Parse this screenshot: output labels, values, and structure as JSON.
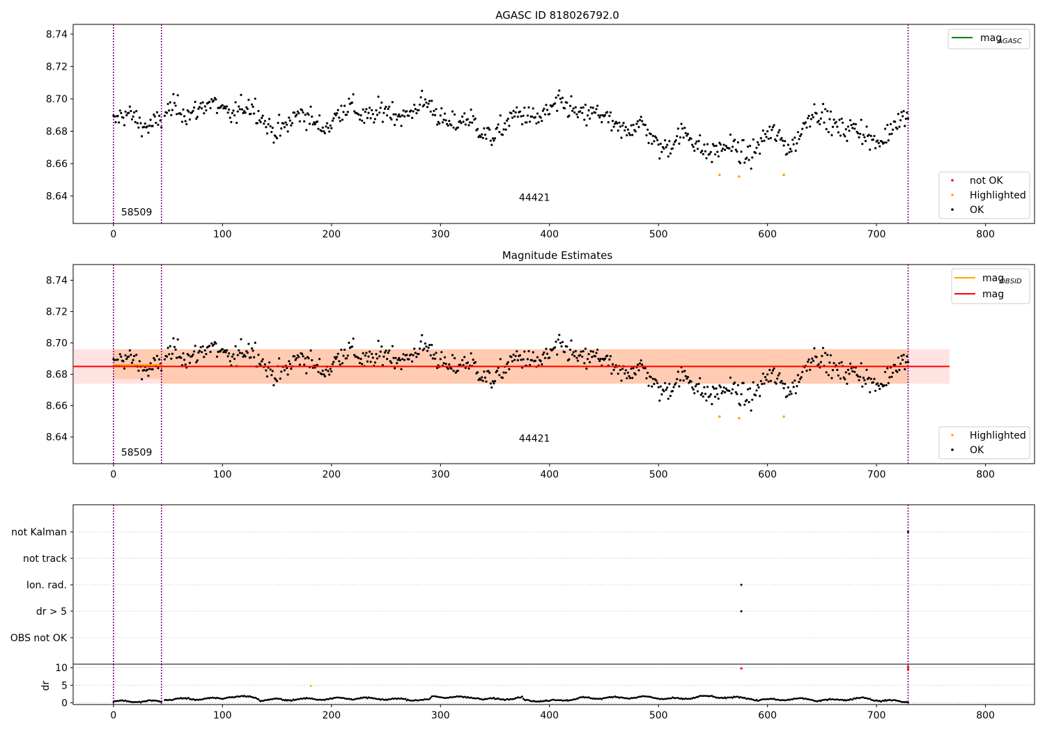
{
  "figure": {
    "colors": {
      "ok": "#000000",
      "highlighted": "#ffa500",
      "not_ok": "#ff0000",
      "obs_line": "#800080",
      "mag_obsid": "#ffa500",
      "mag": "#ff0000",
      "mag_agasc": "#008000",
      "band_mag": "#ff8c8c",
      "band_obsid": "#ffb07a"
    }
  },
  "chart_data": [
    {
      "id": "top",
      "type": "scatter",
      "title": "AGASC ID 818026792.0",
      "xlim": [
        -37,
        845
      ],
      "ylim": [
        8.623,
        8.746
      ],
      "x_ticks": [
        0,
        100,
        200,
        300,
        400,
        500,
        600,
        700,
        800
      ],
      "y_ticks": [
        "8.64",
        "8.66",
        "8.68",
        "8.70",
        "8.72",
        "8.74"
      ],
      "obs_boundaries": [
        0,
        44,
        729
      ],
      "obs_labels": [
        {
          "text": "58509",
          "x": 7,
          "y": 8.628
        },
        {
          "text": "44421",
          "x": 372,
          "y": 8.637
        }
      ],
      "legend_lines": [
        {
          "label": "mag",
          "sub": "AGASC",
          "color": "#008000"
        }
      ],
      "legend_points": [
        {
          "label": "not OK",
          "color": "#ff0000"
        },
        {
          "label": "Highlighted",
          "color": "#ffa500"
        },
        {
          "label": "OK",
          "color": "#000000"
        }
      ],
      "mag_agasc": null,
      "highlighted_points": [
        [
          556,
          8.653
        ],
        [
          574,
          8.652
        ],
        [
          615,
          8.653
        ]
      ],
      "ok_profile": [
        [
          0,
          8.685
        ],
        [
          20,
          8.688
        ],
        [
          44,
          8.685
        ],
        [
          60,
          8.695
        ],
        [
          100,
          8.693
        ],
        [
          120,
          8.695
        ],
        [
          140,
          8.685
        ],
        [
          160,
          8.683
        ],
        [
          180,
          8.69
        ],
        [
          200,
          8.683
        ],
        [
          220,
          8.697
        ],
        [
          240,
          8.688
        ],
        [
          260,
          8.692
        ],
        [
          280,
          8.695
        ],
        [
          300,
          8.69
        ],
        [
          320,
          8.685
        ],
        [
          340,
          8.68
        ],
        [
          360,
          8.682
        ],
        [
          380,
          8.692
        ],
        [
          400,
          8.69
        ],
        [
          420,
          8.697
        ],
        [
          440,
          8.688
        ],
        [
          460,
          8.685
        ],
        [
          480,
          8.682
        ],
        [
          500,
          8.673
        ],
        [
          520,
          8.675
        ],
        [
          540,
          8.672
        ],
        [
          560,
          8.667
        ],
        [
          580,
          8.668
        ],
        [
          600,
          8.675
        ],
        [
          620,
          8.673
        ],
        [
          640,
          8.688
        ],
        [
          660,
          8.688
        ],
        [
          680,
          8.678
        ],
        [
          700,
          8.675
        ],
        [
          720,
          8.685
        ],
        [
          729,
          8.685
        ]
      ],
      "ok_spread": 0.009
    },
    {
      "id": "middle",
      "type": "scatter",
      "title": "Magnitude Estimates",
      "xlim": [
        -37,
        845
      ],
      "ylim": [
        8.623,
        8.75
      ],
      "x_ticks": [
        0,
        100,
        200,
        300,
        400,
        500,
        600,
        700,
        800
      ],
      "y_ticks": [
        "8.64",
        "8.66",
        "8.68",
        "8.70",
        "8.72",
        "8.74"
      ],
      "obs_boundaries": [
        0,
        44,
        729
      ],
      "obs_labels": [
        {
          "text": "58509",
          "x": 7,
          "y": 8.628
        },
        {
          "text": "44421",
          "x": 372,
          "y": 8.637
        }
      ],
      "legend_lines": [
        {
          "label": "mag",
          "sub": "OBSID",
          "color": "#ffa500"
        },
        {
          "label": "mag",
          "sub": "",
          "color": "#ff0000"
        }
      ],
      "legend_points": [
        {
          "label": "Highlighted",
          "color": "#ffa500"
        },
        {
          "label": "OK",
          "color": "#000000"
        }
      ],
      "mag": {
        "value": 8.685,
        "x_range": [
          -37,
          767
        ],
        "band": [
          8.674,
          8.696
        ]
      },
      "mag_obsid": [
        {
          "x_range": [
            0,
            44
          ],
          "value": 8.686,
          "band": [
            8.677,
            8.696
          ]
        },
        {
          "x_range": [
            44,
            729
          ],
          "value": 8.685,
          "band": [
            8.674,
            8.696
          ]
        }
      ],
      "highlighted_points": [
        [
          556,
          8.653
        ],
        [
          574,
          8.652
        ],
        [
          615,
          8.653
        ]
      ]
    },
    {
      "id": "flags",
      "type": "scatter",
      "xlim": [
        -37,
        845
      ],
      "categories": [
        "not Kalman",
        "not track",
        "Ion. rad.",
        "dr > 5",
        "OBS not OK"
      ],
      "flag_points": [
        {
          "category": "not Kalman",
          "x": 729
        },
        {
          "category": "Ion. rad.",
          "x": 576
        },
        {
          "category": "dr > 5",
          "x": 576
        }
      ],
      "obs_boundaries": [
        0,
        44,
        729
      ]
    },
    {
      "id": "dr",
      "type": "scatter",
      "ylabel": "dr",
      "xlim": [
        -37,
        845
      ],
      "ylim": [
        -0.5,
        11
      ],
      "x_ticks": [
        0,
        100,
        200,
        300,
        400,
        500,
        600,
        700,
        800
      ],
      "y_ticks": [
        0,
        5,
        10
      ],
      "obs_boundaries": [
        0,
        44,
        729
      ],
      "red_points": [
        [
          576,
          9.8
        ],
        [
          729,
          10.2
        ],
        [
          729,
          9.5
        ]
      ],
      "orange_points": [
        [
          181,
          4.8
        ]
      ],
      "dr_profile": [
        [
          0,
          0.4
        ],
        [
          44,
          0.4
        ],
        [
          45,
          1.0
        ],
        [
          100,
          1.2
        ],
        [
          105,
          1.8
        ],
        [
          130,
          1.6
        ],
        [
          135,
          0.8
        ],
        [
          220,
          1.3
        ],
        [
          290,
          0.8
        ],
        [
          292,
          1.7
        ],
        [
          335,
          1.5
        ],
        [
          338,
          0.9
        ],
        [
          375,
          1.4
        ],
        [
          377,
          0.7
        ],
        [
          400,
          0.5
        ],
        [
          430,
          1.3
        ],
        [
          488,
          1.6
        ],
        [
          520,
          1.0
        ],
        [
          537,
          1.8
        ],
        [
          585,
          1.3
        ],
        [
          590,
          0.8
        ],
        [
          640,
          1.1
        ],
        [
          645,
          0.6
        ],
        [
          690,
          1.3
        ],
        [
          705,
          0.6
        ],
        [
          729,
          0.4
        ]
      ]
    }
  ]
}
